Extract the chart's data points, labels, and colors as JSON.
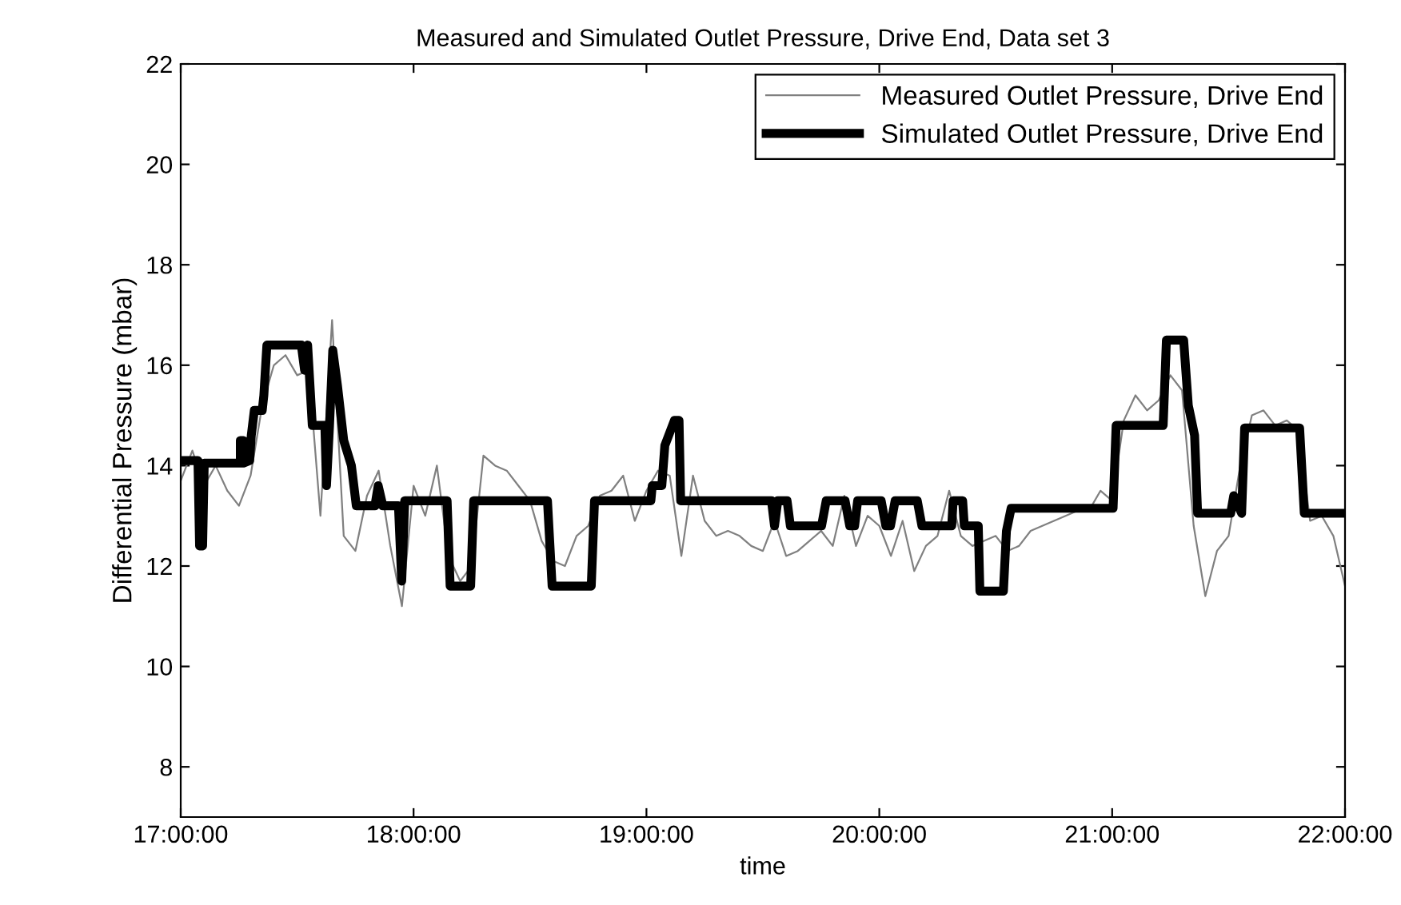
{
  "chart_data": {
    "type": "line",
    "title": "Measured and Simulated Outlet Pressure, Drive End, Data set 3",
    "xlabel": "time",
    "ylabel": "Differential Pressure (mbar)",
    "xlim": [
      17,
      22
    ],
    "xticks": [
      {
        "value": 17,
        "label": "17:00:00"
      },
      {
        "value": 18,
        "label": "18:00:00"
      },
      {
        "value": 19,
        "label": "19:00:00"
      },
      {
        "value": 20,
        "label": "20:00:00"
      },
      {
        "value": 21,
        "label": "21:00:00"
      },
      {
        "value": 22,
        "label": "22:00:00"
      }
    ],
    "ylim": [
      7,
      22
    ],
    "yticks": [
      8,
      10,
      12,
      14,
      16,
      18,
      20,
      22
    ],
    "grid": false,
    "legend": "top right",
    "series": [
      {
        "name": "Measured Outlet Pressure, Drive End",
        "color": "#808080",
        "x": [
          17.0,
          17.05,
          17.1,
          17.15,
          17.2,
          17.25,
          17.3,
          17.35,
          17.4,
          17.45,
          17.5,
          17.55,
          17.6,
          17.65,
          17.7,
          17.75,
          17.8,
          17.85,
          17.9,
          17.95,
          18.0,
          18.05,
          18.1,
          18.15,
          18.2,
          18.25,
          18.3,
          18.35,
          18.4,
          18.45,
          18.5,
          18.55,
          18.6,
          18.65,
          18.7,
          18.75,
          18.8,
          18.85,
          18.9,
          18.95,
          19.0,
          19.05,
          19.1,
          19.15,
          19.2,
          19.25,
          19.3,
          19.35,
          19.4,
          19.45,
          19.5,
          19.55,
          19.6,
          19.65,
          19.7,
          19.75,
          19.8,
          19.85,
          19.9,
          19.95,
          20.0,
          20.05,
          20.1,
          20.15,
          20.2,
          20.25,
          20.3,
          20.35,
          20.4,
          20.45,
          20.5,
          20.55,
          20.6,
          20.65,
          20.7,
          20.75,
          20.8,
          20.85,
          20.9,
          20.95,
          21.0,
          21.05,
          21.1,
          21.15,
          21.2,
          21.25,
          21.3,
          21.35,
          21.4,
          21.45,
          21.5,
          21.55,
          21.6,
          21.65,
          21.7,
          21.75,
          21.8,
          21.85,
          21.9,
          21.95,
          22.0
        ],
        "values": [
          13.7,
          14.3,
          13.6,
          14.0,
          13.5,
          13.2,
          13.8,
          15.2,
          16.0,
          16.2,
          15.8,
          15.9,
          13.0,
          16.9,
          12.6,
          12.3,
          13.4,
          13.9,
          12.4,
          11.2,
          13.6,
          13.0,
          14.0,
          12.2,
          11.7,
          12.0,
          14.2,
          14.0,
          13.9,
          13.6,
          13.3,
          12.5,
          12.1,
          12.0,
          12.6,
          12.8,
          13.4,
          13.5,
          13.8,
          12.9,
          13.5,
          13.9,
          13.8,
          12.2,
          13.8,
          12.9,
          12.6,
          12.7,
          12.6,
          12.4,
          12.3,
          12.9,
          12.2,
          12.3,
          12.5,
          12.7,
          12.4,
          13.4,
          12.4,
          13.0,
          12.8,
          12.2,
          12.9,
          11.9,
          12.4,
          12.6,
          13.5,
          12.6,
          12.4,
          12.5,
          12.6,
          12.3,
          12.4,
          12.7,
          12.8,
          12.9,
          13.0,
          13.1,
          13.1,
          13.5,
          13.3,
          14.9,
          15.4,
          15.1,
          15.3,
          15.8,
          15.5,
          12.8,
          11.4,
          12.3,
          12.6,
          14.0,
          15.0,
          15.1,
          14.8,
          14.9,
          14.7,
          12.9,
          13.0,
          12.6,
          11.6
        ]
      },
      {
        "name": "Simulated Outlet Pressure, Drive End",
        "color": "#000000",
        "x": [
          17.0,
          17.074,
          17.081,
          17.094,
          17.101,
          17.256,
          17.256,
          17.269,
          17.269,
          17.296,
          17.303,
          17.316,
          17.35,
          17.357,
          17.37,
          17.518,
          17.532,
          17.545,
          17.565,
          17.619,
          17.626,
          17.639,
          17.653,
          17.673,
          17.7,
          17.733,
          17.754,
          17.834,
          17.848,
          17.868,
          17.935,
          17.949,
          17.962,
          18.144,
          18.157,
          18.245,
          18.258,
          18.575,
          18.595,
          18.763,
          18.777,
          19.019,
          19.025,
          19.066,
          19.079,
          19.12,
          19.14,
          19.147,
          19.537,
          19.55,
          19.564,
          19.604,
          19.618,
          19.752,
          19.772,
          19.853,
          19.873,
          19.894,
          19.907,
          20.008,
          20.028,
          20.048,
          20.068,
          20.163,
          20.183,
          20.311,
          20.317,
          20.358,
          20.365,
          20.425,
          20.432,
          20.533,
          20.546,
          20.566,
          21.004,
          21.017,
          21.219,
          21.233,
          21.307,
          21.327,
          21.354,
          21.367,
          21.509,
          21.522,
          21.556,
          21.569,
          21.805,
          21.825,
          22.0
        ],
        "values": [
          14.1,
          14.1,
          12.4,
          12.4,
          14.05,
          14.05,
          14.5,
          14.5,
          14.05,
          14.1,
          14.6,
          15.1,
          15.1,
          15.4,
          16.4,
          16.4,
          15.9,
          16.4,
          14.8,
          14.8,
          13.6,
          14.8,
          16.3,
          15.6,
          14.5,
          14.0,
          13.2,
          13.2,
          13.6,
          13.2,
          13.2,
          11.7,
          13.3,
          13.3,
          11.6,
          11.6,
          13.3,
          13.3,
          11.6,
          11.6,
          13.3,
          13.3,
          13.6,
          13.6,
          14.4,
          14.9,
          14.9,
          13.3,
          13.3,
          12.8,
          13.3,
          13.3,
          12.8,
          12.8,
          13.3,
          13.3,
          12.8,
          12.8,
          13.3,
          13.3,
          12.8,
          12.8,
          13.3,
          13.3,
          12.8,
          12.8,
          13.3,
          13.3,
          12.8,
          12.8,
          11.5,
          11.5,
          12.7,
          13.15,
          13.15,
          14.8,
          14.8,
          16.5,
          16.5,
          15.2,
          14.6,
          13.05,
          13.05,
          13.4,
          13.05,
          14.75,
          14.75,
          13.05,
          13.05
        ]
      }
    ]
  }
}
